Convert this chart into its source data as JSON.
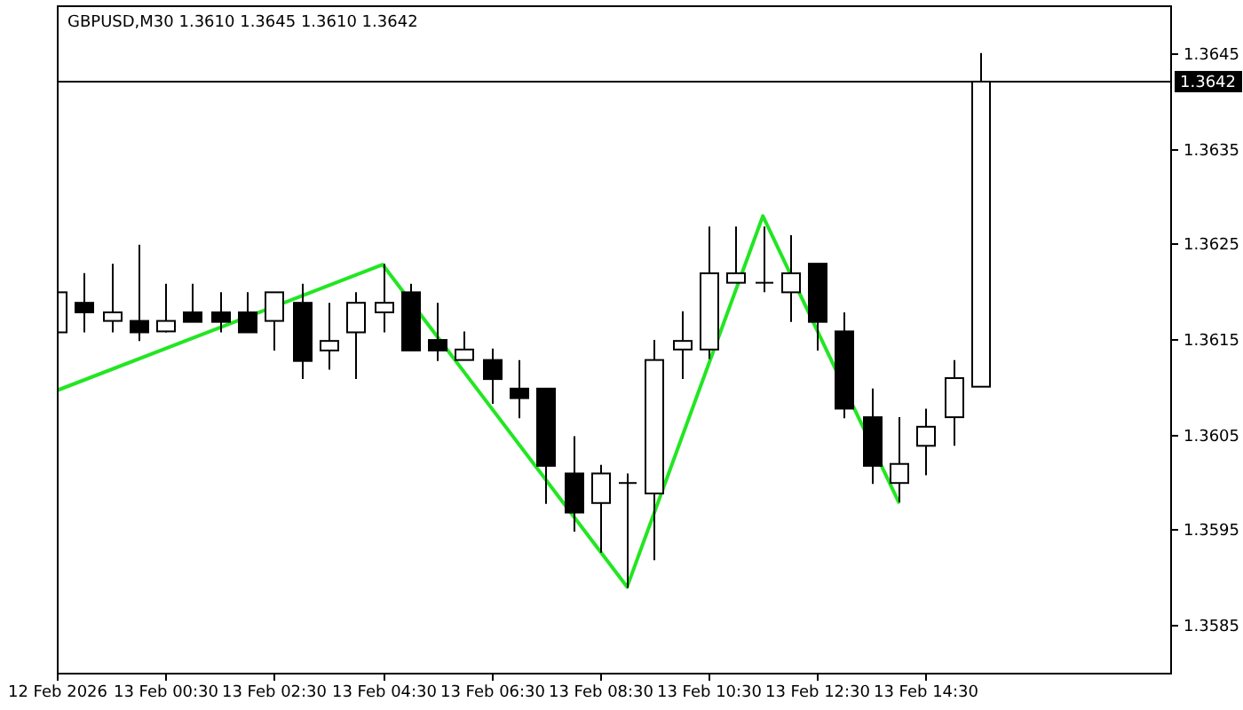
{
  "chart_data": {
    "type": "candlestick",
    "title": "GBPUSD,M30  1.3610 1.3645 1.3610 1.3642",
    "x": [
      "2026-02-12T22:30",
      "2026-02-12T23:00",
      "2026-02-12T23:30",
      "2026-02-13T00:00",
      "2026-02-13T00:30",
      "2026-02-13T01:00",
      "2026-02-13T01:30",
      "2026-02-13T02:00",
      "2026-02-13T02:30",
      "2026-02-13T03:00",
      "2026-02-13T03:30",
      "2026-02-13T04:00",
      "2026-02-13T04:30",
      "2026-02-13T05:00",
      "2026-02-13T05:30",
      "2026-02-13T06:00",
      "2026-02-13T06:30",
      "2026-02-13T07:00",
      "2026-02-13T07:30",
      "2026-02-13T08:00",
      "2026-02-13T08:30",
      "2026-02-13T09:00",
      "2026-02-13T09:30",
      "2026-02-13T10:00",
      "2026-02-13T10:30",
      "2026-02-13T11:00",
      "2026-02-13T11:30",
      "2026-02-13T12:00",
      "2026-02-13T12:30",
      "2026-02-13T13:00",
      "2026-02-13T13:30",
      "2026-02-13T14:00",
      "2026-02-13T14:30",
      "2026-02-13T15:00",
      "2026-02-13T15:30"
    ],
    "ohlc": [
      [
        1.36157,
        1.36208,
        1.36138,
        1.36199
      ],
      [
        1.36188,
        1.36219,
        1.36157,
        1.36178
      ],
      [
        1.36169,
        1.36229,
        1.36157,
        1.36178
      ],
      [
        1.36169,
        1.36249,
        1.36148,
        1.36157
      ],
      [
        1.36158,
        1.36208,
        1.36157,
        1.36169
      ],
      [
        1.36178,
        1.36208,
        1.36168,
        1.36168
      ],
      [
        1.36178,
        1.36199,
        1.36157,
        1.36168
      ],
      [
        1.36178,
        1.36199,
        1.36157,
        1.36157
      ],
      [
        1.36169,
        1.36199,
        1.36138,
        1.36199
      ],
      [
        1.36188,
        1.36208,
        1.36108,
        1.36127
      ],
      [
        1.36138,
        1.36188,
        1.36118,
        1.36148
      ],
      [
        1.36157,
        1.36199,
        1.36108,
        1.36188
      ],
      [
        1.36178,
        1.36229,
        1.36157,
        1.36188
      ],
      [
        1.36199,
        1.36208,
        1.36138,
        1.36138
      ],
      [
        1.36149,
        1.36188,
        1.36127,
        1.36138
      ],
      [
        1.36128,
        1.36158,
        1.36128,
        1.36139
      ],
      [
        1.36128,
        1.3614,
        1.36082,
        1.36108
      ],
      [
        1.36098,
        1.36128,
        1.36067,
        1.36088
      ],
      [
        1.36098,
        1.36098,
        1.35977,
        1.36017
      ],
      [
        1.36009,
        1.36048,
        1.35948,
        1.35968
      ],
      [
        1.35978,
        1.36018,
        1.35926,
        1.36009
      ],
      [
        1.35999,
        1.36009,
        1.35889,
        1.35999
      ],
      [
        1.35988,
        1.36149,
        1.35918,
        1.36128
      ],
      [
        1.36139,
        1.36179,
        1.36108,
        1.36148
      ],
      [
        1.36139,
        1.36268,
        1.36129,
        1.36219
      ],
      [
        1.36209,
        1.36268,
        1.36209,
        1.36219
      ],
      [
        1.36209,
        1.36268,
        1.36199,
        1.36209
      ],
      [
        1.36199,
        1.36259,
        1.36168,
        1.36219
      ],
      [
        1.36229,
        1.36229,
        1.36138,
        1.36168
      ],
      [
        1.36158,
        1.36178,
        1.36067,
        1.36077
      ],
      [
        1.36068,
        1.36098,
        1.35998,
        1.36017
      ],
      [
        1.35999,
        1.36068,
        1.35979,
        1.36019
      ],
      [
        1.36038,
        1.36077,
        1.36007,
        1.36058
      ],
      [
        1.36068,
        1.36128,
        1.36038,
        1.36109
      ],
      [
        1.361,
        1.3645,
        1.361,
        1.3642
      ]
    ],
    "series": [
      {
        "type": "line",
        "color": "#22e622",
        "x": [
          "2026-02-12T22:30",
          "2026-02-13T04:30",
          "2026-02-13T09:00",
          "2026-02-13T11:30",
          "2026-02-13T14:00"
        ],
        "values": [
          1.36096,
          1.36228,
          1.3589,
          1.36279,
          1.35979
        ]
      }
    ],
    "xlim": [
      "2026-02-12T22:30",
      "2026-02-13T19:00"
    ],
    "xticks": [
      {
        "value": "2026-02-12T22:30",
        "label": "12 Feb 2026"
      },
      {
        "value": "2026-02-13T00:30",
        "label": "13 Feb 00:30"
      },
      {
        "value": "2026-02-13T02:30",
        "label": "13 Feb 02:30"
      },
      {
        "value": "2026-02-13T04:30",
        "label": "13 Feb 04:30"
      },
      {
        "value": "2026-02-13T06:30",
        "label": "13 Feb 06:30"
      },
      {
        "value": "2026-02-13T08:30",
        "label": "13 Feb 08:30"
      },
      {
        "value": "2026-02-13T10:30",
        "label": "13 Feb 10:30"
      },
      {
        "value": "2026-02-13T12:30",
        "label": "13 Feb 12:30"
      },
      {
        "value": "2026-02-13T14:30",
        "label": "13 Feb 14:30"
      }
    ],
    "ylim": [
      1.358,
      1.365
    ],
    "yticks": [
      1.3585,
      1.3595,
      1.3605,
      1.3615,
      1.3625,
      1.3635,
      1.3645
    ],
    "ref_lines": [
      {
        "axis": "y",
        "value": 1.3642,
        "label": "1.3642",
        "color": "#000000"
      }
    ]
  }
}
